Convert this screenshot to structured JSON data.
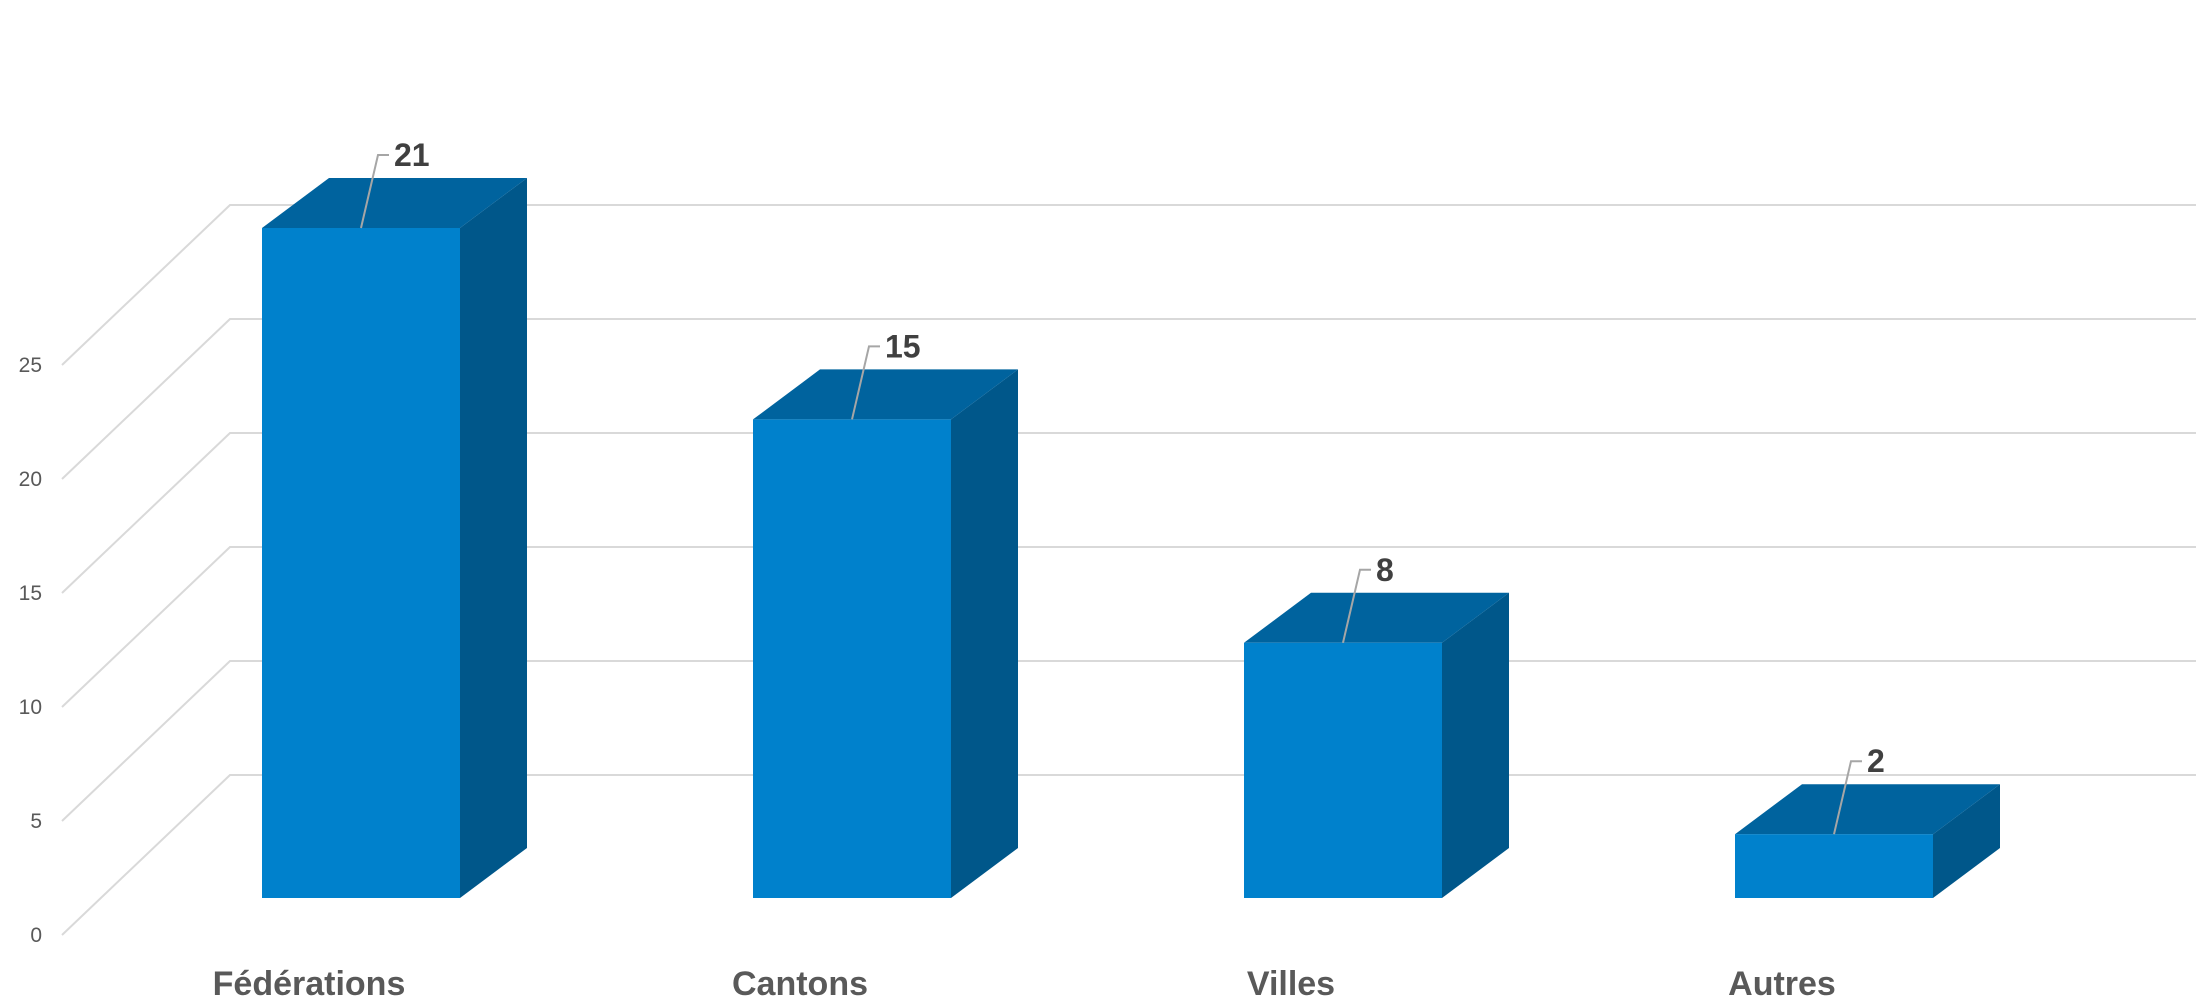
{
  "chart_data": {
    "type": "bar",
    "style": "3d-column",
    "categories": [
      "Fédérations",
      "Cantons",
      "Villes",
      "Autres"
    ],
    "values": [
      21,
      15,
      8,
      2
    ],
    "data_labels": [
      "21",
      "15",
      "8",
      "2"
    ],
    "ylim": [
      0,
      25
    ],
    "yticks": [
      0,
      5,
      10,
      15,
      20,
      25
    ],
    "ytick_labels": [
      "0",
      "5",
      "10",
      "15",
      "20",
      "25"
    ],
    "grid": true,
    "legend": "none",
    "title": "",
    "xlabel": "",
    "ylabel": ""
  },
  "colors": {
    "bar_front": "#0081CC",
    "bar_top": "#00639E",
    "bar_side": "#00578A",
    "grid": "#D9D9D9",
    "tick_text": "#595959",
    "data_label_text": "#404040"
  }
}
